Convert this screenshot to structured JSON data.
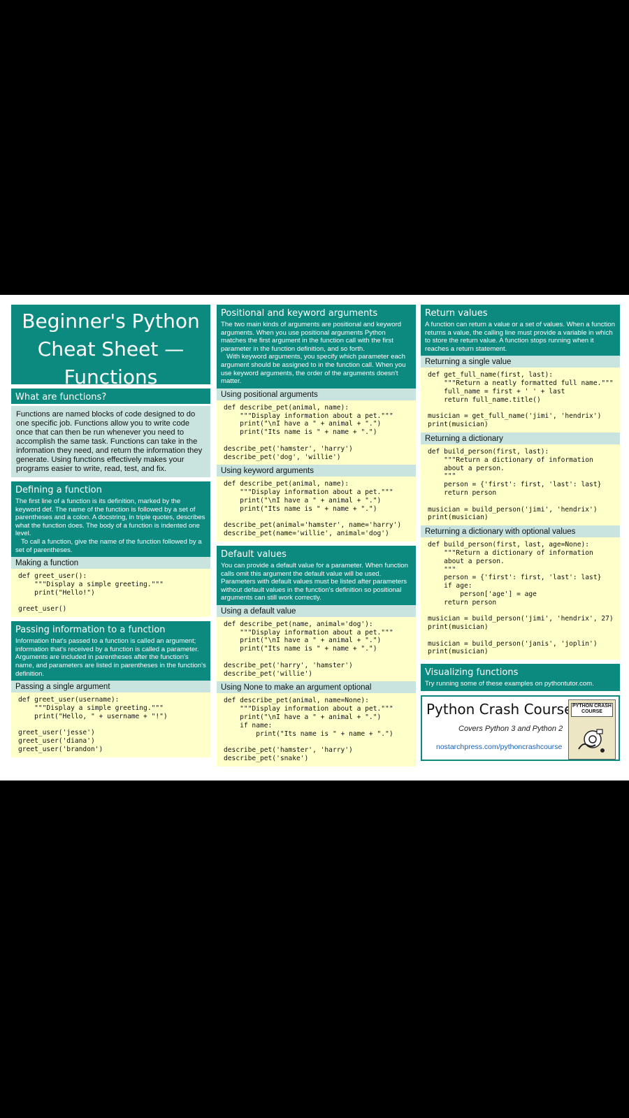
{
  "title": "Beginner's Python Cheat Sheet — Functions",
  "what": {
    "heading": "What are functions?",
    "text": "Functions are named blocks of code designed to do one specific job. Functions allow you to write code once that can then be run whenever you need to accomplish the same task. Functions can take in the information they need, and return the information they generate. Using functions effectively makes your programs easier to write, read, test, and fix."
  },
  "defining": {
    "heading": "Defining a function",
    "text1": "The first line of a function is its definition, marked by the keyword def. The name of the function is followed by a set of parentheses and a colon. A docstring, in triple quotes, describes what the function does. The body of a function is indented one level.",
    "text2": "To call a function, give the name of the function followed by a set of parentheses.",
    "sub": "Making a function",
    "code": "def greet_user():\n    \"\"\"Display a simple greeting.\"\"\"\n    print(\"Hello!\")\n\ngreet_user()"
  },
  "passing": {
    "heading": "Passing information to a function",
    "text": "Information that's passed to a function is called an argument; information that's received by a function is called a parameter. Arguments are included in parentheses after the function's name, and parameters are listed in parentheses in the function's definition.",
    "sub": "Passing a single argument",
    "code": "def greet_user(username):\n    \"\"\"Display a simple greeting.\"\"\"\n    print(\"Hello, \" + username + \"!\")\n\ngreet_user('jesse')\ngreet_user('diana')\ngreet_user('brandon')"
  },
  "positional": {
    "heading": "Positional and keyword arguments",
    "text1": "The two main kinds of arguments are positional and keyword arguments. When you use positional arguments Python matches the first argument in the function call with the first parameter in the function definition, and so forth.",
    "text2": "With keyword arguments, you specify which parameter each argument should be assigned to in the function call. When you use keyword arguments, the order of the arguments doesn't matter.",
    "sub1": "Using positional arguments",
    "code1": "def describe_pet(animal, name):\n    \"\"\"Display information about a pet.\"\"\"\n    print(\"\\nI have a \" + animal + \".\")\n    print(\"Its name is \" + name + \".\")\n\ndescribe_pet('hamster', 'harry')\ndescribe_pet('dog', 'willie')",
    "sub2": "Using keyword arguments",
    "code2": "def describe_pet(animal, name):\n    \"\"\"Display information about a pet.\"\"\"\n    print(\"\\nI have a \" + animal + \".\")\n    print(\"Its name is \" + name + \".\")\n\ndescribe_pet(animal='hamster', name='harry')\ndescribe_pet(name='willie', animal='dog')"
  },
  "defaults": {
    "heading": "Default values",
    "text": "You can provide a default value for a parameter. When function calls omit this argument the default value will be used. Parameters with default values must be listed after parameters without default values in the function's definition so positional arguments can still work correctly.",
    "sub1": "Using a default value",
    "code1": "def describe_pet(name, animal='dog'):\n    \"\"\"Display information about a pet.\"\"\"\n    print(\"\\nI have a \" + animal + \".\")\n    print(\"Its name is \" + name + \".\")\n\ndescribe_pet('harry', 'hamster')\ndescribe_pet('willie')",
    "sub2": "Using None to make an argument optional",
    "code2": "def describe_pet(animal, name=None):\n    \"\"\"Display information about a pet.\"\"\"\n    print(\"\\nI have a \" + animal + \".\")\n    if name:\n        print(\"Its name is \" + name + \".\")\n\ndescribe_pet('hamster', 'harry')\ndescribe_pet('snake')"
  },
  "returns": {
    "heading": "Return values",
    "text": "A function can return a value or a set of values. When a function returns a value, the calling line must provide a variable in which to store the return value. A function stops running when it reaches a return statement.",
    "sub1": "Returning a single value",
    "code1": "def get_full_name(first, last):\n    \"\"\"Return a neatly formatted full name.\"\"\"\n    full_name = first + ' ' + last\n    return full_name.title()\n\nmusician = get_full_name('jimi', 'hendrix')\nprint(musician)",
    "sub2": "Returning a dictionary",
    "code2": "def build_person(first, last):\n    \"\"\"Return a dictionary of information\n    about a person.\n    \"\"\"\n    person = {'first': first, 'last': last}\n    return person\n\nmusician = build_person('jimi', 'hendrix')\nprint(musician)",
    "sub3": "Returning a dictionary with optional values",
    "code3": "def build_person(first, last, age=None):\n    \"\"\"Return a dictionary of information\n    about a person.\n    \"\"\"\n    person = {'first': first, 'last': last}\n    if age:\n        person['age'] = age\n    return person\n\nmusician = build_person('jimi', 'hendrix', 27)\nprint(musician)\n\nmusician = build_person('janis', 'joplin')\nprint(musician)"
  },
  "visualizing": {
    "heading": "Visualizing functions",
    "text": "Try running some of these examples on pythontutor.com."
  },
  "promo": {
    "title": "Python Crash Course",
    "subtitle": "Covers Python 3 and Python 2",
    "link": "nostarchpress.com/pythoncrashcourse",
    "book_title": "PYTHON CRASH COURSE"
  },
  "colors": {
    "teal": "#0d8a80",
    "light_teal": "#c9e4de",
    "code_bg": "#ffffc9",
    "link": "#1a5fb4"
  }
}
